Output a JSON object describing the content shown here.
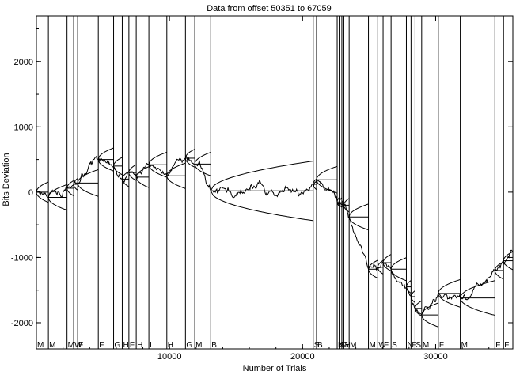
{
  "chart_data": {
    "type": "line",
    "title": "Data from offset 50351 to 67059",
    "xlabel": "Number of Trials",
    "ylabel": "Bits Deviation",
    "xlim": [
      0,
      35800
    ],
    "ylim": [
      -2400,
      2700
    ],
    "x_ticks": [
      10000,
      20000,
      30000
    ],
    "x_tick_labels": [
      "10000",
      "20000",
      "30000"
    ],
    "y_ticks": [
      -2000,
      -1000,
      0,
      1000,
      2000
    ],
    "y_tick_labels": [
      "-2000",
      "-1000",
      "0",
      "1000",
      "2000"
    ],
    "grid": false,
    "line_color": "#000000",
    "segments": [
      {
        "label": "M",
        "start": 0,
        "end": 900,
        "start_y": 0,
        "end_y": -80
      },
      {
        "label": "M",
        "start": 900,
        "end": 2300,
        "start_y": -80,
        "end_y": 60
      },
      {
        "label": "M",
        "start": 2300,
        "end": 2800,
        "start_y": 60,
        "end_y": 120
      },
      {
        "label": "W",
        "start": 2800,
        "end": 3100,
        "start_y": 120,
        "end_y": 140
      },
      {
        "label": "F",
        "start": 3100,
        "end": 4650,
        "start_y": 140,
        "end_y": 500
      },
      {
        "label": "F",
        "start": 4650,
        "end": 5800,
        "start_y": 500,
        "end_y": 400
      },
      {
        "label": "G",
        "start": 5800,
        "end": 6450,
        "start_y": 400,
        "end_y": 200
      },
      {
        "label": "H",
        "start": 6450,
        "end": 6950,
        "start_y": 200,
        "end_y": 300
      },
      {
        "label": "F",
        "start": 6950,
        "end": 7500,
        "start_y": 300,
        "end_y": 230
      },
      {
        "label": "H",
        "start": 7500,
        "end": 8450,
        "start_y": 230,
        "end_y": 420
      },
      {
        "label": "I",
        "start": 8450,
        "end": 9800,
        "start_y": 420,
        "end_y": 250
      },
      {
        "label": "H",
        "start": 9800,
        "end": 11200,
        "start_y": 250,
        "end_y": 520
      },
      {
        "label": "G",
        "start": 11200,
        "end": 11900,
        "start_y": 520,
        "end_y": 430
      },
      {
        "label": "M",
        "start": 11900,
        "end": 13100,
        "start_y": 430,
        "end_y": 20
      },
      {
        "label": "B",
        "start": 13100,
        "end": 20800,
        "start_y": 20,
        "end_y": 120
      },
      {
        "label": "S",
        "start": 20800,
        "end": 21050,
        "start_y": 120,
        "end_y": 190
      },
      {
        "label": "B",
        "start": 21050,
        "end": 22600,
        "start_y": 190,
        "end_y": -150
      },
      {
        "label": "N",
        "start": 22600,
        "end": 22750,
        "start_y": -150,
        "end_y": -160
      },
      {
        "label": "S",
        "start": 22750,
        "end": 22950,
        "start_y": -160,
        "end_y": -180
      },
      {
        "label": "G",
        "start": 22950,
        "end": 23100,
        "start_y": -180,
        "end_y": -200
      },
      {
        "label": "H",
        "start": 23100,
        "end": 23500,
        "start_y": -200,
        "end_y": -380
      },
      {
        "label": "M",
        "start": 23500,
        "end": 24950,
        "start_y": -380,
        "end_y": -1180
      },
      {
        "label": "M",
        "start": 24950,
        "end": 25650,
        "start_y": -1180,
        "end_y": -1150
      },
      {
        "label": "W",
        "start": 25650,
        "end": 26050,
        "start_y": -1150,
        "end_y": -1080
      },
      {
        "label": "F",
        "start": 26050,
        "end": 26650,
        "start_y": -1080,
        "end_y": -1180
      },
      {
        "label": "S",
        "start": 26650,
        "end": 27800,
        "start_y": -1180,
        "end_y": -1450
      },
      {
        "label": "N",
        "start": 27800,
        "end": 28150,
        "start_y": -1450,
        "end_y": -1600
      },
      {
        "label": "F",
        "start": 28150,
        "end": 28450,
        "start_y": -1600,
        "end_y": -1780
      },
      {
        "label": "S",
        "start": 28450,
        "end": 28950,
        "start_y": -1780,
        "end_y": -1880
      },
      {
        "label": "M",
        "start": 28950,
        "end": 30200,
        "start_y": -1880,
        "end_y": -1550
      },
      {
        "label": "F",
        "start": 30200,
        "end": 31850,
        "start_y": -1550,
        "end_y": -1620
      },
      {
        "label": "M",
        "start": 31850,
        "end": 34450,
        "start_y": -1620,
        "end_y": -1200
      },
      {
        "label": "F",
        "start": 34450,
        "end": 35100,
        "start_y": -1200,
        "end_y": -1050
      },
      {
        "label": "F",
        "start": 35100,
        "end": 35800,
        "start_y": -1050,
        "end_y": -900
      }
    ],
    "random_walk": {
      "step_trials": 50,
      "noise_sd": 22,
      "seed": 17
    }
  }
}
